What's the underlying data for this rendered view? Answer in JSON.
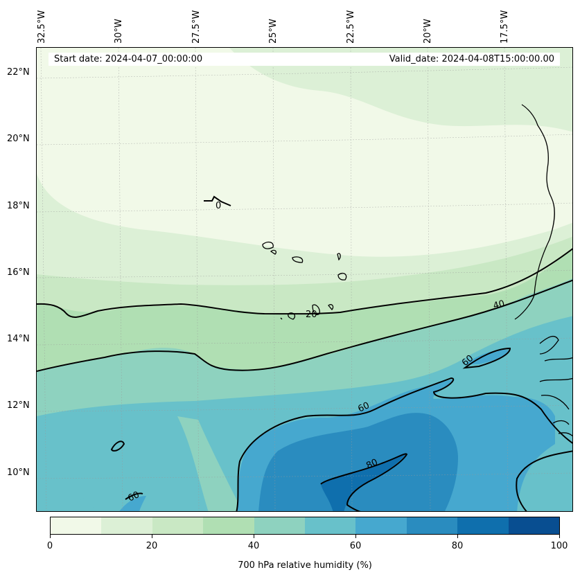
{
  "header": {
    "start_date": "Start date: 2024-04-07_00:00:00",
    "valid_date": "Valid_date: 2024-04-08T15:00:00.00"
  },
  "axes": {
    "longitudes": [
      "32.5°W",
      "30°W",
      "27.5°W",
      "25°W",
      "22.5°W",
      "20°W",
      "17.5°W"
    ],
    "latitudes": [
      "22°N",
      "20°N",
      "18°N",
      "16°N",
      "14°N",
      "12°N",
      "10°N"
    ]
  },
  "contour_labels": [
    "0",
    "20",
    "40",
    "60",
    "60",
    "80",
    "60"
  ],
  "colorbar": {
    "title": "700 hPa relative humidity (%)",
    "tick_labels": [
      "0",
      "20",
      "40",
      "60",
      "80",
      "100"
    ],
    "colors": [
      "#f1f9e8",
      "#dcf0d6",
      "#c9e8c4",
      "#b0dfb3",
      "#8ed2bf",
      "#68c1ca",
      "#46a8cf",
      "#2a8cbf",
      "#0f6fad",
      "#084e91"
    ]
  }
}
